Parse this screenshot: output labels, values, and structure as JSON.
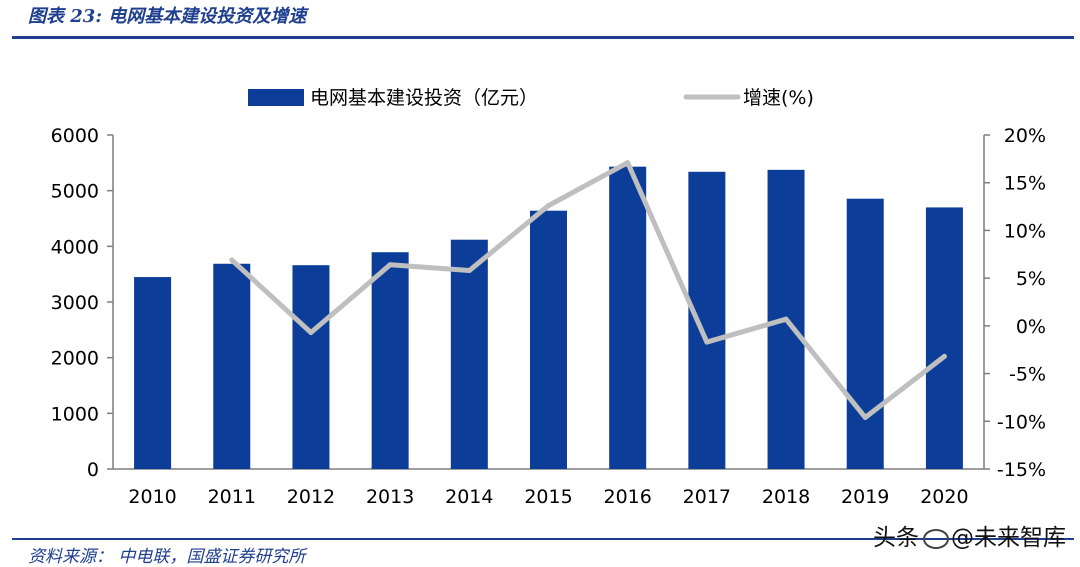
{
  "header": {
    "figure_title": "图表 23:  电网基本建设投资及增速"
  },
  "footer": {
    "source": "资料来源： 中电联，国盛证券研究所",
    "watermark_prefix": "头条",
    "watermark_handle": "@未来智库"
  },
  "colors": {
    "bar": "#0b3d99",
    "line": "#bfbfbf",
    "title": "#1f3f8f"
  },
  "chart_data": {
    "type": "bar",
    "categories": [
      "2010",
      "2011",
      "2012",
      "2013",
      "2014",
      "2015",
      "2016",
      "2017",
      "2018",
      "2019",
      "2020"
    ],
    "series": [
      {
        "name": "电网基本建设投资（亿元）",
        "type": "bar",
        "axis": "left",
        "values": [
          3448,
          3687,
          3661,
          3894,
          4119,
          4640,
          5431,
          5339,
          5374,
          4856,
          4699
        ]
      },
      {
        "name": "增速(%)",
        "type": "line",
        "axis": "right",
        "values": [
          null,
          6.9,
          -0.7,
          6.4,
          5.8,
          12.6,
          17.1,
          -1.7,
          0.7,
          -9.6,
          -3.2
        ]
      }
    ],
    "y_left": {
      "min": 0,
      "max": 6000,
      "ticks": [
        "0",
        "1000",
        "2000",
        "3000",
        "4000",
        "5000",
        "6000"
      ]
    },
    "y_right": {
      "min": -15,
      "max": 20,
      "ticks": [
        "-15%",
        "-10%",
        "-5%",
        "0%",
        "5%",
        "10%",
        "15%",
        "20%"
      ]
    },
    "grid": false,
    "legend_position": "top"
  }
}
